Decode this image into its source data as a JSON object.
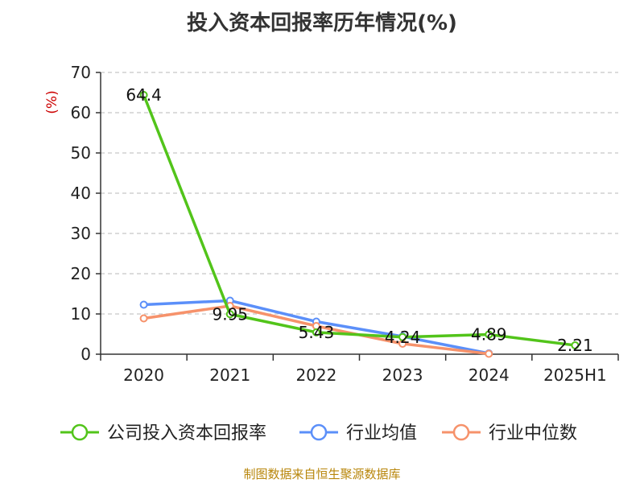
{
  "chart_data": {
    "type": "line",
    "title": "投入资本回报率历年情况(%)",
    "ylabel": "(%)",
    "xlabel": "",
    "categories": [
      "2020",
      "2021",
      "2022",
      "2023",
      "2024",
      "2025H1"
    ],
    "ylim": [
      0,
      70
    ],
    "yticks": [
      0,
      10,
      20,
      30,
      40,
      50,
      60,
      70
    ],
    "grid": true,
    "legend_position": "bottom",
    "series": [
      {
        "name": "公司投入资本回报率",
        "color": "#52c41a",
        "values": [
          64.4,
          9.95,
          5.43,
          4.24,
          4.89,
          2.21
        ],
        "labels": [
          "64.4",
          "9.95",
          "5.43",
          "4.24",
          "4.89",
          "2.21"
        ]
      },
      {
        "name": "行业均值",
        "color": "#5b8ff9",
        "values": [
          12.3,
          13.3,
          8.1,
          4.4,
          0.2,
          null
        ]
      },
      {
        "name": "行业中位数",
        "color": "#f6926b",
        "values": [
          8.9,
          12.0,
          7.0,
          2.6,
          0.1,
          null
        ]
      }
    ]
  },
  "footer": {
    "source": "制图数据来自恒生聚源数据库"
  }
}
